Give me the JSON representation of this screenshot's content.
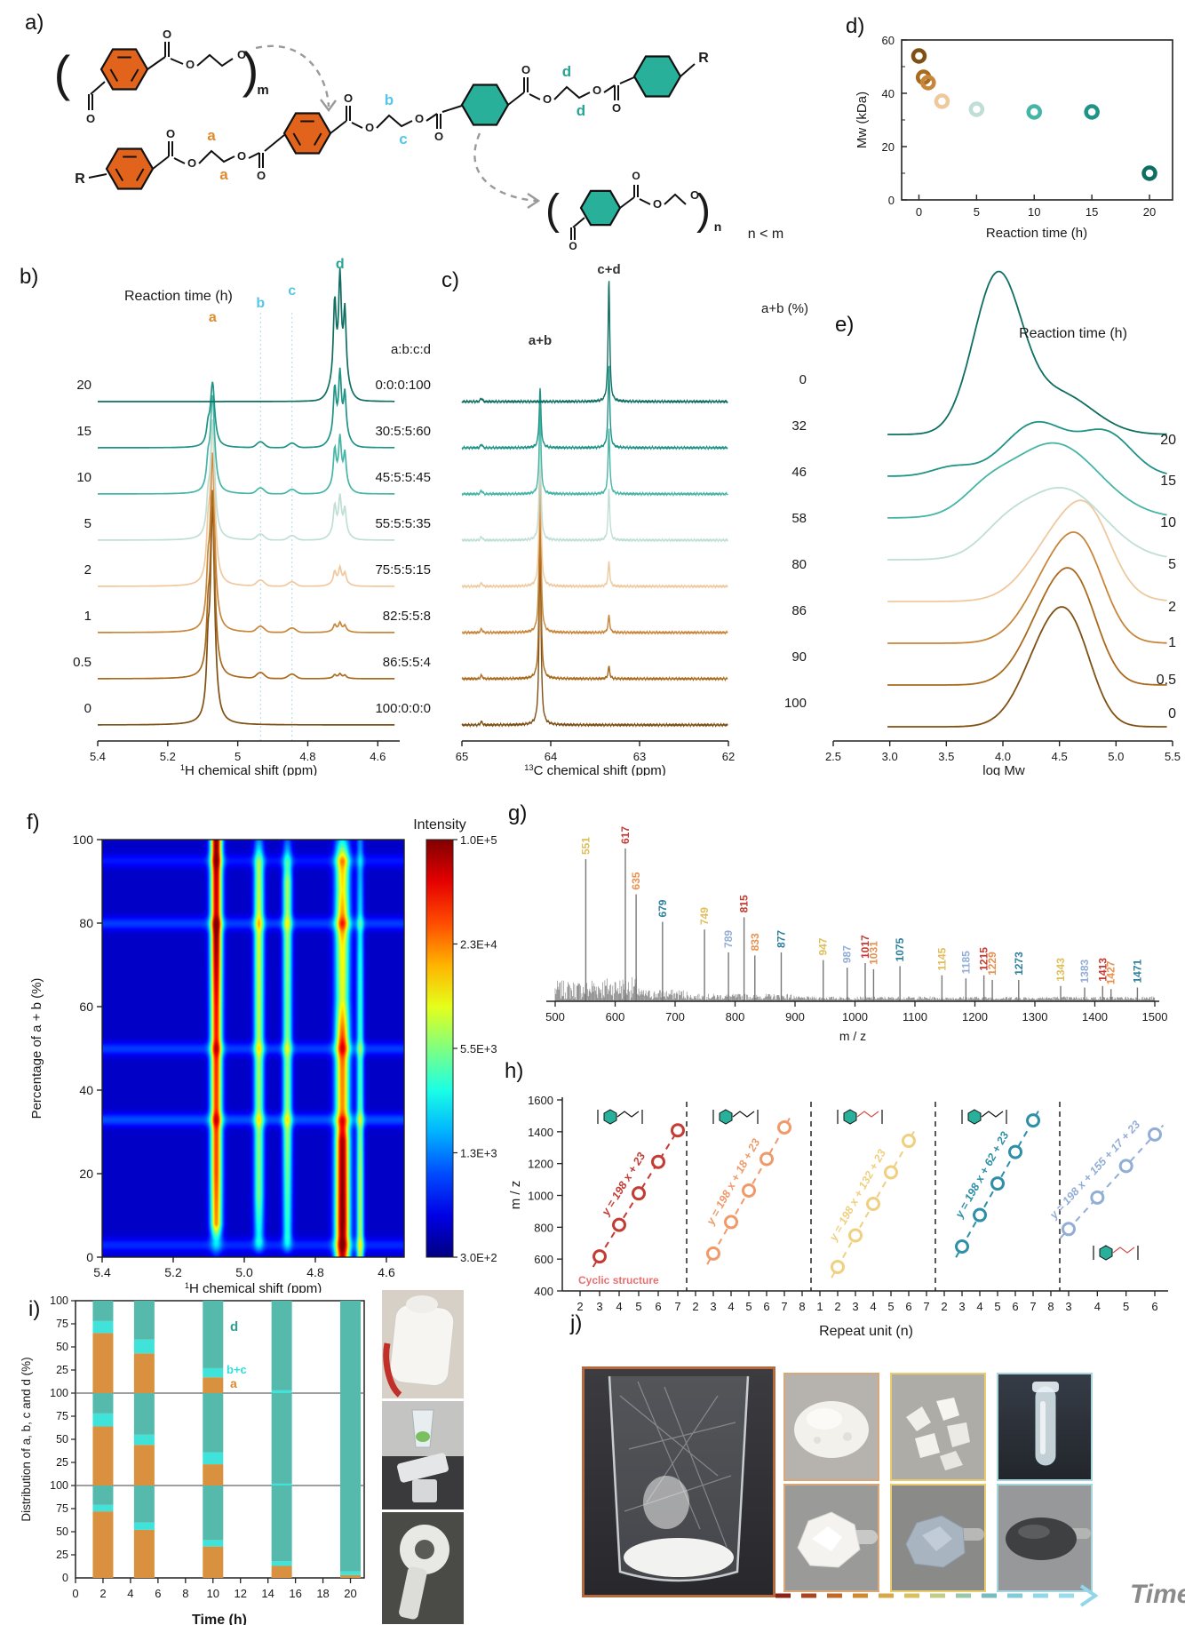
{
  "panel_labels": {
    "a": "a)",
    "b": "b)",
    "c": "c)",
    "d": "d)",
    "e": "e)",
    "f": "f)",
    "g": "g)",
    "h": "h)",
    "i": "i)",
    "j": "j)"
  },
  "scheme": {
    "pet_color": "#E2641C",
    "pect_color": "#29B09A",
    "mark_a": "a",
    "mark_b": "b",
    "mark_c": "c",
    "mark_d": "d",
    "mark_a_color": "#E08A2E",
    "mark_bc_color": "#54C6E8",
    "mark_d_color": "#29A393",
    "r_label": "R",
    "o_label": "O",
    "m_sub": "m",
    "n_sub": "n",
    "note": "n < m"
  },
  "series_rows": [
    {
      "time": "0",
      "ratio": "100:0:0:0",
      "ab": 100,
      "abcd": [
        100,
        0,
        0,
        0
      ],
      "color": "#7E5014"
    },
    {
      "time": "0.5",
      "ratio": "86:5:5:4",
      "ab": 90,
      "abcd": [
        86,
        5,
        5,
        4
      ],
      "color": "#A96A1E"
    },
    {
      "time": "1",
      "ratio": "82:5:5:8",
      "ab": 86,
      "abcd": [
        82,
        5,
        5,
        8
      ],
      "color": "#C8863A"
    },
    {
      "time": "2",
      "ratio": "75:5:5:15",
      "ab": 80,
      "abcd": [
        75,
        5,
        5,
        15
      ],
      "color": "#EFC99E"
    },
    {
      "time": "5",
      "ratio": "55:5:5:35",
      "ab": 58,
      "abcd": [
        55,
        5,
        5,
        35
      ],
      "color": "#BFDFD6"
    },
    {
      "time": "10",
      "ratio": "45:5:5:45",
      "ab": 46,
      "abcd": [
        45,
        5,
        5,
        45
      ],
      "color": "#45B5A5"
    },
    {
      "time": "15",
      "ratio": "30:5:5:60",
      "ab": 32,
      "abcd": [
        30,
        5,
        5,
        60
      ],
      "color": "#1E9386"
    },
    {
      "time": "20",
      "ratio": "0:0:0:100",
      "ab": 0,
      "abcd": [
        0,
        0,
        0,
        100
      ],
      "color": "#0F6E62"
    }
  ],
  "chart_data": [
    {
      "panel": "b",
      "type": "line",
      "title": "Reaction time (h)",
      "ratio_header": "a:b:c:d",
      "xlabel_sup": "1",
      "xlabel": "H chemical shift (ppm)",
      "x_ticks": [
        "5.4",
        "5.2",
        "5",
        "4.8",
        "4.6"
      ],
      "x_tick_vals": [
        5.4,
        5.2,
        5.0,
        4.8,
        4.6
      ],
      "x_range": [
        5.4,
        4.55
      ],
      "peak_ppm": {
        "a": 5.072,
        "b": 4.935,
        "c": 4.845,
        "d": 4.708
      },
      "guide_lines": [
        4.935,
        4.845
      ],
      "times_top_to_bottom": [
        "20",
        "15",
        "10",
        "5",
        "2",
        "1",
        "0.5",
        "0"
      ],
      "ratios_top_to_bottom": [
        "0:0:0:100",
        "30:5:5:60",
        "45:5:5:45",
        "55:5:5:35",
        "75:5:5:15",
        "82:5:5:8",
        "86:5:5:4",
        "100:0:0:0"
      ]
    },
    {
      "panel": "c",
      "type": "line",
      "header": "a+b (%)",
      "xlabel_sup": "13",
      "xlabel": "C chemical shift (ppm)",
      "x_ticks": [
        "65",
        "64",
        "63",
        "62"
      ],
      "x_tick_vals": [
        65,
        64,
        63,
        62
      ],
      "x_range": [
        65,
        62
      ],
      "peak_ppm": {
        "ab": 64.12,
        "cd": 63.345
      },
      "peak_labels": {
        "ab": "a+b",
        "cd": "c+d"
      },
      "ab_percent_top_to_bottom": [
        0,
        32,
        46,
        58,
        80,
        86,
        90,
        100
      ]
    },
    {
      "panel": "d",
      "type": "scatter",
      "ylabel": "Mw (kDa)",
      "xlabel": "Reaction time (h)",
      "x_ticks": [
        0,
        5,
        10,
        15,
        20
      ],
      "y_ticks": [
        0,
        20,
        40,
        60
      ],
      "ylim": [
        0,
        60
      ],
      "x": [
        0,
        0.4,
        0.8,
        2,
        5,
        10,
        15,
        20
      ],
      "y": [
        54,
        46,
        44,
        37,
        34,
        33,
        33,
        10
      ]
    },
    {
      "panel": "e",
      "type": "line",
      "title": "Reaction time (h)",
      "xlabel": "log Mw",
      "x_ticks": [
        "2.5",
        "3.0",
        "3.5",
        "4.0",
        "4.5",
        "5.0",
        "5.5"
      ],
      "x_tick_vals": [
        2.5,
        3.0,
        3.5,
        4.0,
        4.5,
        5.0,
        5.5
      ],
      "x_range": [
        2.5,
        5.5
      ],
      "curve_labels_bottom_to_top": [
        "0",
        "0.5",
        "1",
        "2",
        "5",
        "10",
        "15",
        "20"
      ],
      "label_y": [
        520,
        482,
        440,
        400,
        352,
        305,
        258,
        212
      ],
      "curves": [
        [
          {
            "c": 4.42,
            "a": 100,
            "w": 0.33
          },
          {
            "c": 4.64,
            "a": 55,
            "w": 0.25
          }
        ],
        [
          {
            "c": 4.47,
            "a": 100,
            "w": 0.35
          },
          {
            "c": 4.69,
            "a": 50,
            "w": 0.25
          }
        ],
        [
          {
            "c": 4.52,
            "a": 95,
            "w": 0.38
          },
          {
            "c": 4.74,
            "a": 45,
            "w": 0.26
          }
        ],
        [
          {
            "c": 4.57,
            "a": 86,
            "w": 0.42
          },
          {
            "c": 4.79,
            "a": 40,
            "w": 0.26
          }
        ],
        [
          {
            "c": 4.52,
            "a": 80,
            "w": 0.52
          },
          {
            "c": 4.0,
            "a": 20,
            "w": 0.3
          }
        ],
        [
          {
            "c": 4.45,
            "a": 84,
            "w": 0.56
          },
          {
            "c": 3.85,
            "a": 20,
            "w": 0.3
          }
        ],
        [
          {
            "c": 4.3,
            "a": 60,
            "w": 0.4
          },
          {
            "c": 4.92,
            "a": 46,
            "w": 0.32
          },
          {
            "c": 3.55,
            "a": 10,
            "w": 0.25
          }
        ],
        [
          {
            "c": 3.95,
            "a": 175,
            "w": 0.3
          },
          {
            "c": 4.5,
            "a": 45,
            "w": 0.42
          }
        ]
      ]
    },
    {
      "panel": "f",
      "type": "heatmap",
      "ylabel": "Percentage of a + b (%)",
      "xlabel_sup": "1",
      "xlabel": "H chemical shift (ppm)",
      "x_ticks": [
        "5.4",
        "5.2",
        "5.0",
        "4.8",
        "4.6"
      ],
      "x_tick_vals": [
        5.4,
        5.2,
        5.0,
        4.8,
        4.6
      ],
      "y_ticks": [
        0,
        20,
        40,
        60,
        80,
        100
      ],
      "x_range": [
        5.4,
        4.55
      ],
      "y_range": [
        0,
        100
      ],
      "colorbar_title": "Intensity",
      "colorbar_ticks": [
        "1.0E+5",
        "2.3E+4",
        "5.5E+3",
        "1.3E+3",
        "3.0E+2"
      ],
      "bands": [
        {
          "ppm": 5.08,
          "w": 0.016,
          "profile": [
            [
              0,
              0.06
            ],
            [
              4,
              0.25
            ],
            [
              8,
              0.7
            ],
            [
              20,
              0.78
            ],
            [
              40,
              0.8
            ],
            [
              60,
              0.85
            ],
            [
              78,
              1.0
            ],
            [
              82,
              0.9
            ],
            [
              90,
              0.92
            ],
            [
              100,
              1.0
            ]
          ]
        },
        {
          "ppm": 4.96,
          "w": 0.014,
          "profile": [
            [
              0,
              0.0
            ],
            [
              4,
              0.3
            ],
            [
              15,
              0.45
            ],
            [
              50,
              0.5
            ],
            [
              80,
              0.55
            ],
            [
              93,
              0.5
            ],
            [
              100,
              0.2
            ]
          ]
        },
        {
          "ppm": 4.88,
          "w": 0.013,
          "profile": [
            [
              0,
              0.0
            ],
            [
              5,
              0.35
            ],
            [
              30,
              0.48
            ],
            [
              60,
              0.45
            ],
            [
              90,
              0.5
            ],
            [
              100,
              0.15
            ]
          ]
        },
        {
          "ppm": 4.725,
          "w": 0.02,
          "profile": [
            [
              0,
              0.9
            ],
            [
              8,
              1.0
            ],
            [
              28,
              0.95
            ],
            [
              34,
              0.7
            ],
            [
              45,
              0.72
            ],
            [
              52,
              0.8
            ],
            [
              62,
              0.55
            ],
            [
              75,
              0.6
            ],
            [
              80,
              0.72
            ],
            [
              88,
              0.6
            ],
            [
              95,
              0.65
            ],
            [
              100,
              0.3
            ]
          ]
        },
        {
          "ppm": 4.675,
          "w": 0.01,
          "profile": [
            [
              0,
              0.5
            ],
            [
              20,
              0.5
            ],
            [
              40,
              0.4
            ],
            [
              70,
              0.35
            ],
            [
              100,
              0.2
            ]
          ]
        }
      ],
      "streaks": [
        {
          "y": 33,
          "amp": 0.14
        },
        {
          "y": 50,
          "amp": 0.12
        },
        {
          "y": 80,
          "amp": 0.12
        },
        {
          "y": 95,
          "amp": 0.08
        },
        {
          "y": 3,
          "amp": 0.1
        }
      ]
    },
    {
      "panel": "g",
      "type": "bar",
      "xlabel": "m / z",
      "x_ticks": [
        500,
        600,
        700,
        800,
        900,
        1000,
        1100,
        1200,
        1300,
        1400,
        1500
      ],
      "x_range": [
        500,
        1500
      ],
      "peaks": [
        {
          "mz": 551,
          "h": 0.93,
          "color": "#E0BE5A"
        },
        {
          "mz": 617,
          "h": 1.0,
          "color": "#C43B33"
        },
        {
          "mz": 635,
          "h": 0.7,
          "color": "#E89050"
        },
        {
          "mz": 679,
          "h": 0.52,
          "color": "#2E7F9E"
        },
        {
          "mz": 749,
          "h": 0.47,
          "color": "#E0BE5A"
        },
        {
          "mz": 789,
          "h": 0.32,
          "color": "#92AED6"
        },
        {
          "mz": 815,
          "h": 0.55,
          "color": "#C43B33"
        },
        {
          "mz": 833,
          "h": 0.3,
          "color": "#E89050"
        },
        {
          "mz": 877,
          "h": 0.32,
          "color": "#2E7F9E"
        },
        {
          "mz": 947,
          "h": 0.27,
          "color": "#E0BE5A"
        },
        {
          "mz": 987,
          "h": 0.22,
          "color": "#92AED6"
        },
        {
          "mz": 1017,
          "h": 0.25,
          "color": "#C43B33"
        },
        {
          "mz": 1031,
          "h": 0.21,
          "color": "#E89050"
        },
        {
          "mz": 1075,
          "h": 0.23,
          "color": "#2E7F9E"
        },
        {
          "mz": 1145,
          "h": 0.17,
          "color": "#E0BE5A"
        },
        {
          "mz": 1185,
          "h": 0.15,
          "color": "#92AED6"
        },
        {
          "mz": 1215,
          "h": 0.17,
          "color": "#C43B33"
        },
        {
          "mz": 1229,
          "h": 0.14,
          "color": "#E89050"
        },
        {
          "mz": 1273,
          "h": 0.14,
          "color": "#2E7F9E"
        },
        {
          "mz": 1343,
          "h": 0.1,
          "color": "#E0BE5A"
        },
        {
          "mz": 1383,
          "h": 0.09,
          "color": "#92AED6"
        },
        {
          "mz": 1413,
          "h": 0.1,
          "color": "#C43B33"
        },
        {
          "mz": 1427,
          "h": 0.08,
          "color": "#E89050"
        },
        {
          "mz": 1471,
          "h": 0.09,
          "color": "#2E7F9E"
        }
      ]
    },
    {
      "panel": "h",
      "type": "scatter",
      "ylabel": "m / z",
      "xlabel": "Repeat unit (n)",
      "y_ticks": [
        400,
        600,
        800,
        1000,
        1200,
        1400,
        1600
      ],
      "y_range": [
        400,
        1600
      ],
      "slope": 198,
      "segments": [
        {
          "color": "#C43B33",
          "equation": "y = 198 x + 23",
          "intercept": 23,
          "n": [
            3,
            4,
            5,
            6,
            7
          ],
          "ticks": [
            2,
            3,
            4,
            5,
            6,
            7
          ],
          "note": "Cyclic structure",
          "note_color": "#E87070"
        },
        {
          "color": "#F09A6A",
          "equation": "y = 198 x + 18 + 23",
          "intercept": 41,
          "n": [
            3,
            4,
            5,
            6,
            7
          ],
          "ticks": [
            2,
            3,
            4,
            5,
            6,
            7,
            8
          ]
        },
        {
          "color": "#EFD080",
          "equation": "y = 198 x + 132 + 23",
          "intercept": 155,
          "n": [
            2,
            3,
            4,
            5,
            6
          ],
          "ticks": [
            1,
            2,
            3,
            4,
            5,
            6,
            7
          ]
        },
        {
          "color": "#2E8FA8",
          "equation": "y = 198 x + 62 + 23",
          "intercept": 85,
          "n": [
            3,
            4,
            5,
            6,
            7
          ],
          "ticks": [
            2,
            3,
            4,
            5,
            6,
            7,
            8
          ]
        },
        {
          "color": "#92AED6",
          "equation": "y = 198 x + 155 + 17 + 23",
          "intercept": 195,
          "n": [
            3,
            4,
            5,
            6
          ],
          "ticks": [
            3,
            4,
            5,
            6
          ]
        }
      ]
    },
    {
      "panel": "i",
      "type": "bar",
      "stacked": true,
      "ylabel": "Distribution of a, b, c and d (%)",
      "xlabel": "Time (h)",
      "x_ticks": [
        0,
        2,
        4,
        6,
        8,
        10,
        12,
        14,
        16,
        18,
        20
      ],
      "y_tick_labels": [
        "0",
        "25",
        "50",
        "75",
        "100"
      ],
      "bar_times": [
        2,
        5,
        10,
        15,
        20
      ],
      "series_colors": {
        "a": "#D9903F",
        "bc": "#3FE3DA",
        "d": "#55B9AC"
      },
      "legend": {
        "d": "d",
        "bc": "b+c",
        "a": "a"
      },
      "legend_colors": {
        "d": "#2E9E92",
        "bc": "#30E0D8",
        "a": "#D98A2E"
      },
      "subcharts": [
        {
          "bars_a_bc_d": [
            [
              65,
              13,
              22
            ],
            [
              43,
              15,
              42
            ],
            [
              17,
              10,
              73
            ],
            [
              0,
              3,
              97
            ],
            [
              0,
              0,
              100
            ]
          ]
        },
        {
          "bars_a_bc_d": [
            [
              64,
              14,
              22
            ],
            [
              44,
              11,
              45
            ],
            [
              23,
              13,
              64
            ],
            [
              0,
              2,
              98
            ],
            [
              0,
              0,
              100
            ]
          ]
        },
        {
          "bars_a_bc_d": [
            [
              72,
              7,
              21
            ],
            [
              52,
              8,
              40
            ],
            [
              34,
              7,
              59
            ],
            [
              13,
              5,
              82
            ],
            [
              3,
              4,
              93
            ]
          ]
        }
      ]
    }
  ],
  "panel_i_photos": [
    "bagged-product-photo",
    "molded-parts-photo",
    "film-roll-photo"
  ],
  "panel_j": {
    "time_label": "Time",
    "photo_names": [
      "beaker-with-film",
      "white-powder",
      "white-melt-chunk",
      "white-flakes",
      "grey-gel-blob",
      "clear-vial",
      "dark-melt-spatula"
    ]
  }
}
